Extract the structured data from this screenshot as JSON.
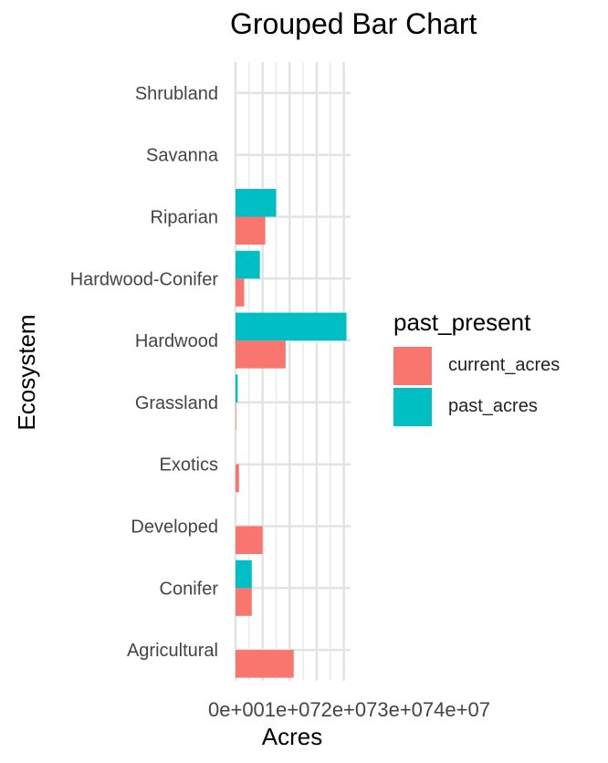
{
  "chart_data": {
    "type": "bar",
    "orientation": "horizontal",
    "grouped": true,
    "title": "Grouped Bar Chart",
    "xlabel": "Acres",
    "ylabel": "Ecosystem",
    "categories": [
      "Agricultural",
      "Conifer",
      "Developed",
      "Exotics",
      "Grassland",
      "Hardwood",
      "Hardwood-Conifer",
      "Riparian",
      "Savanna",
      "Shrubland"
    ],
    "series": [
      {
        "name": "current_acres",
        "color": "#F8766D",
        "values": [
          21500000,
          6000000,
          10000000,
          1300000,
          200000,
          18500000,
          3200000,
          11000000,
          0,
          0
        ]
      },
      {
        "name": "past_acres",
        "color": "#00BFC4",
        "values": [
          0,
          6000000,
          0,
          0,
          800000,
          41000000,
          9000000,
          15000000,
          0,
          0
        ]
      }
    ],
    "xlim": [
      0,
      42500000
    ],
    "x_ticks": [
      0,
      10000000,
      20000000,
      30000000,
      40000000
    ],
    "x_tick_text": "0e+001e+072e+073e+074e+07",
    "legend_title": "past_present",
    "legend_position": "right",
    "grid": true
  }
}
